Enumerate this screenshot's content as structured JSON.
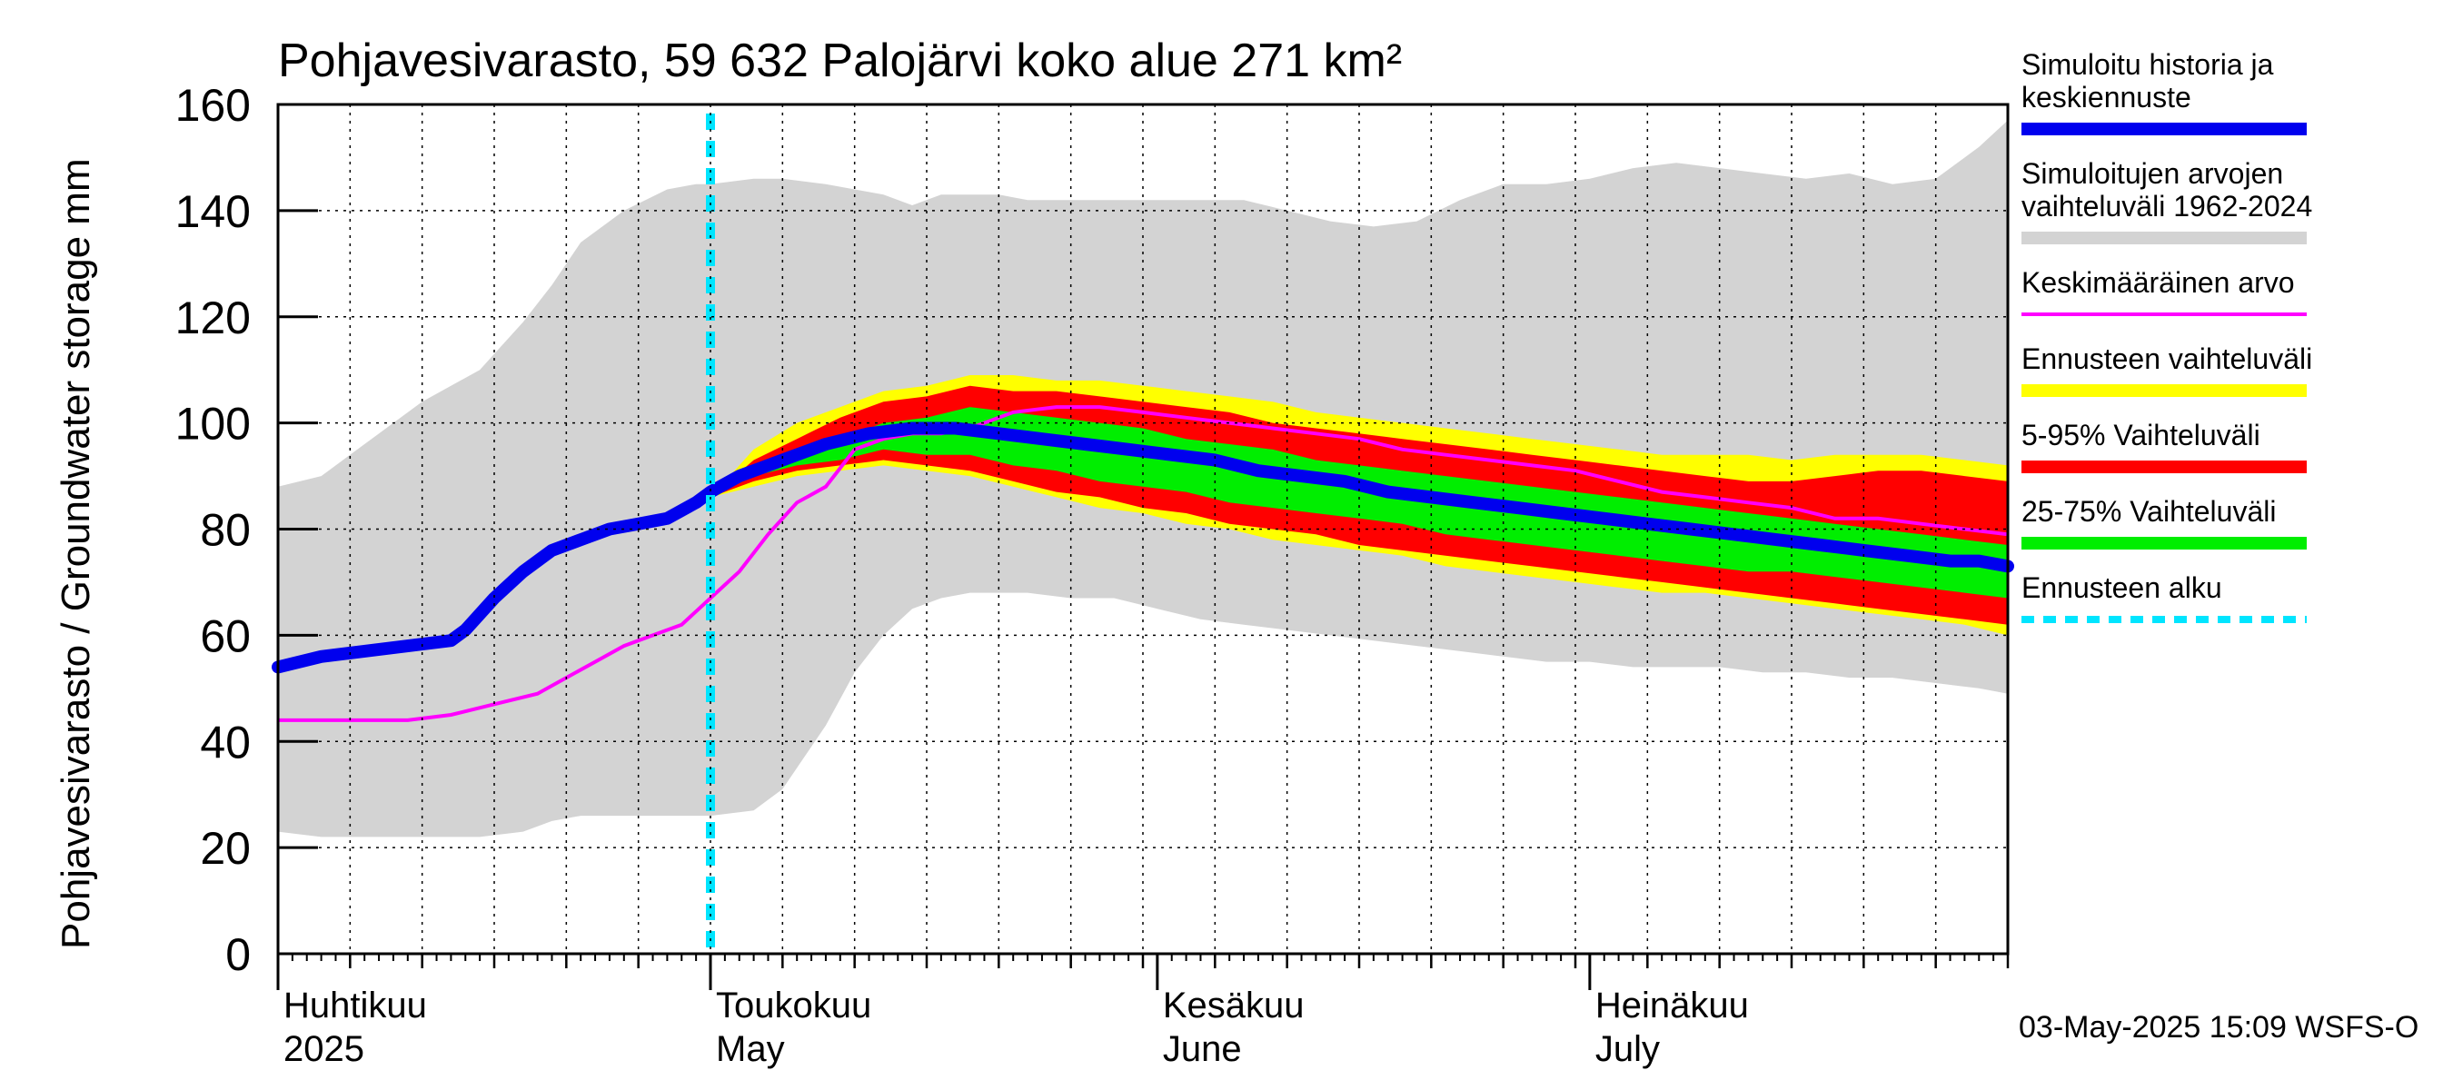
{
  "chart_data": {
    "type": "area",
    "title": "Pohjavesivarasto, 59 632 Palojärvi koko alue 271 km²",
    "ylabel": "Pohjavesivarasto / Groundwater storage   mm",
    "ylim": [
      0,
      160
    ],
    "yticks": [
      0,
      20,
      40,
      60,
      80,
      100,
      120,
      140,
      160
    ],
    "xlim_days": [
      0,
      120
    ],
    "month_labels": [
      {
        "fi": "Huhtikuu",
        "en": "2025",
        "day": 0
      },
      {
        "fi": "Toukokuu",
        "en": "May",
        "day": 30
      },
      {
        "fi": "Kesäkuu",
        "en": "June",
        "day": 61
      },
      {
        "fi": "Heinäkuu",
        "en": "July",
        "day": 91
      }
    ],
    "forecast_start_day": 30,
    "footer": "03-May-2025 15:09 WSFS-O",
    "legend": [
      {
        "label": "Simuloitu historia ja keskiennuste",
        "color": "#0000ee",
        "style": "thick"
      },
      {
        "label": "Simuloitujen arvojen vaihteluväli 1962-2024",
        "color": "#d3d3d3",
        "style": "band"
      },
      {
        "label": "Keskimääräinen arvo",
        "color": "#ff00ff",
        "style": "line"
      },
      {
        "label": "Ennusteen vaihteluväli",
        "color": "#ffff00",
        "style": "band"
      },
      {
        "label": "5-95% Vaihteluväli",
        "color": "#ff0000",
        "style": "band"
      },
      {
        "label": "25-75% Vaihteluväli",
        "color": "#00ee00",
        "style": "band"
      },
      {
        "label": "Ennusteen alku",
        "color": "#00e5ff",
        "style": "dashed"
      }
    ],
    "series": {
      "hist_range": {
        "x": [
          0,
          3,
          6,
          10,
          14,
          17,
          19,
          21,
          24,
          27,
          29,
          30,
          33,
          35,
          38,
          40,
          42,
          44,
          46,
          48,
          50,
          52,
          55,
          58,
          61,
          64,
          67,
          70,
          73,
          76,
          79,
          82,
          85,
          88,
          91,
          94,
          97,
          100,
          103,
          106,
          109,
          112,
          115,
          118,
          120
        ],
        "upper": [
          88,
          90,
          96,
          104,
          110,
          119,
          126,
          134,
          140,
          144,
          145,
          145,
          146,
          146,
          145,
          144,
          143,
          141,
          143,
          143,
          143,
          142,
          142,
          142,
          142,
          142,
          142,
          140,
          138,
          137,
          138,
          142,
          145,
          145,
          146,
          148,
          149,
          148,
          147,
          146,
          147,
          145,
          146,
          152,
          157
        ],
        "lower": [
          23,
          22,
          22,
          22,
          22,
          23,
          25,
          26,
          26,
          26,
          26,
          26,
          27,
          31,
          43,
          53,
          60,
          65,
          67,
          68,
          68,
          68,
          67,
          67,
          65,
          63,
          62,
          61,
          60,
          59,
          58,
          57,
          56,
          55,
          55,
          54,
          54,
          54,
          53,
          53,
          52,
          52,
          51,
          50,
          49
        ]
      },
      "forecast_range": {
        "x": [
          30,
          33,
          36,
          39,
          42,
          45,
          48,
          51,
          54,
          57,
          60,
          63,
          66,
          69,
          72,
          75,
          78,
          81,
          84,
          87,
          90,
          93,
          96,
          99,
          102,
          105,
          108,
          111,
          114,
          117,
          120
        ],
        "upper": [
          86,
          95,
          100,
          103,
          106,
          107,
          109,
          109,
          108,
          108,
          107,
          106,
          105,
          104,
          102,
          101,
          100,
          99,
          98,
          97,
          96,
          95,
          94,
          94,
          94,
          93,
          94,
          94,
          94,
          93,
          92
        ],
        "lower": [
          86,
          88,
          90,
          91,
          92,
          91,
          90,
          88,
          86,
          84,
          83,
          81,
          80,
          78,
          77,
          76,
          75,
          73,
          72,
          71,
          70,
          69,
          68,
          68,
          67,
          66,
          65,
          64,
          63,
          62,
          60
        ]
      },
      "p5_95": {
        "x": [
          30,
          33,
          36,
          39,
          42,
          45,
          48,
          51,
          54,
          57,
          60,
          63,
          66,
          69,
          72,
          75,
          78,
          81,
          84,
          87,
          90,
          93,
          96,
          99,
          102,
          105,
          108,
          111,
          114,
          117,
          120
        ],
        "upper": [
          86,
          93,
          97,
          101,
          104,
          105,
          107,
          106,
          106,
          105,
          104,
          103,
          102,
          100,
          99,
          98,
          97,
          96,
          95,
          94,
          93,
          92,
          91,
          90,
          89,
          89,
          90,
          91,
          91,
          90,
          89
        ],
        "lower": [
          86,
          89,
          91,
          92,
          93,
          92,
          91,
          89,
          87,
          86,
          84,
          83,
          81,
          80,
          79,
          77,
          76,
          75,
          74,
          73,
          72,
          71,
          70,
          69,
          68,
          67,
          66,
          65,
          64,
          63,
          62
        ]
      },
      "p25_75": {
        "x": [
          30,
          33,
          36,
          39,
          42,
          45,
          48,
          51,
          54,
          57,
          60,
          63,
          66,
          69,
          72,
          75,
          78,
          81,
          84,
          87,
          90,
          93,
          96,
          99,
          102,
          105,
          108,
          111,
          114,
          117,
          120
        ],
        "upper": [
          86,
          91,
          94,
          97,
          100,
          101,
          103,
          102,
          101,
          100,
          99,
          97,
          96,
          95,
          93,
          92,
          91,
          90,
          89,
          88,
          87,
          86,
          85,
          84,
          83,
          82,
          81,
          80,
          79,
          78,
          77
        ],
        "lower": [
          86,
          90,
          92,
          93,
          95,
          94,
          94,
          92,
          91,
          89,
          88,
          87,
          85,
          84,
          83,
          82,
          81,
          79,
          78,
          77,
          76,
          75,
          74,
          73,
          72,
          72,
          71,
          70,
          69,
          68,
          67
        ]
      },
      "mean": {
        "x": [
          0,
          3,
          6,
          9,
          12,
          15,
          18,
          20,
          22,
          24,
          26,
          28,
          30,
          32,
          34,
          36,
          38,
          40,
          42,
          44,
          46,
          48,
          51,
          54,
          57,
          60,
          63,
          66,
          69,
          72,
          75,
          78,
          81,
          84,
          87,
          90,
          93,
          96,
          99,
          102,
          105,
          108,
          111,
          114,
          117,
          120
        ],
        "y": [
          44,
          44,
          44,
          44,
          45,
          47,
          49,
          52,
          55,
          58,
          60,
          62,
          67,
          72,
          79,
          85,
          88,
          95,
          97,
          98,
          98,
          99,
          102,
          103,
          103,
          102,
          101,
          100,
          99,
          98,
          97,
          95,
          94,
          93,
          92,
          91,
          89,
          87,
          86,
          85,
          84,
          82,
          82,
          81,
          80,
          79
        ]
      },
      "simulated": {
        "x": [
          0,
          3,
          6,
          9,
          12,
          13,
          15,
          17,
          19,
          21,
          23,
          25,
          27,
          29,
          30,
          32,
          35,
          38,
          41,
          44,
          47,
          50,
          53,
          56,
          59,
          62,
          65,
          68,
          71,
          74,
          77,
          80,
          83,
          86,
          89,
          92,
          95,
          98,
          101,
          104,
          107,
          110,
          113,
          116,
          118,
          120
        ],
        "y": [
          54,
          56,
          57,
          58,
          59,
          61,
          67,
          72,
          76,
          78,
          80,
          81,
          82,
          85,
          87,
          90,
          93,
          96,
          98,
          99,
          99,
          98,
          97,
          96,
          95,
          94,
          93,
          91,
          90,
          89,
          87,
          86,
          85,
          84,
          83,
          82,
          81,
          80,
          79,
          78,
          77,
          76,
          75,
          74,
          74,
          73
        ]
      }
    }
  }
}
